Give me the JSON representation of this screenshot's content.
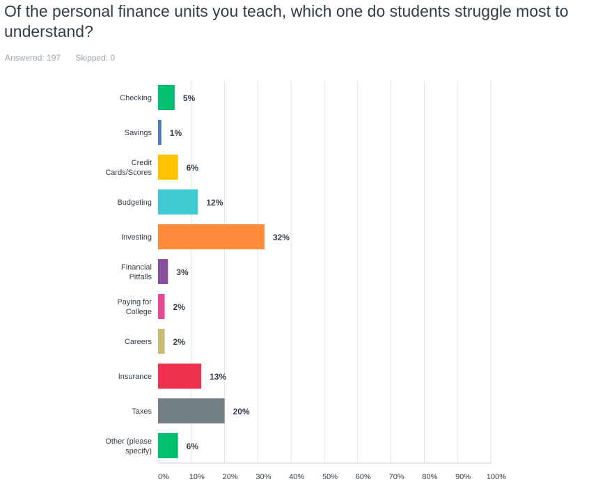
{
  "question": {
    "title": "Of the personal finance units you teach, which one do students struggle most to understand?"
  },
  "meta": {
    "answered": "Answered: 197",
    "skipped": "Skipped: 0"
  },
  "chart_data": {
    "type": "bar",
    "orientation": "horizontal",
    "categories": [
      [
        "Checking"
      ],
      [
        "Savings"
      ],
      [
        "Credit",
        "Cards/Scores"
      ],
      [
        "Budgeting"
      ],
      [
        "Investing"
      ],
      [
        "Financial",
        "Pitfalls"
      ],
      [
        "Paying for",
        "College"
      ],
      [
        "Careers"
      ],
      [
        "Insurance"
      ],
      [
        "Taxes"
      ],
      [
        "Other (please",
        "specify)"
      ]
    ],
    "values": [
      5,
      1,
      6,
      12,
      32,
      3,
      2,
      2,
      13,
      20,
      6
    ],
    "value_labels": [
      "5%",
      "1%",
      "6%",
      "12%",
      "32%",
      "3%",
      "2%",
      "2%",
      "13%",
      "20%",
      "6%"
    ],
    "colors": [
      "#00bf6f",
      "#507cb6",
      "#ffc300",
      "#3fcad1",
      "#ff8b3d",
      "#8a4f9c",
      "#e74c94",
      "#c9bc79",
      "#f0304f",
      "#737e84",
      "#00bf6f"
    ],
    "xlim": [
      0,
      100
    ],
    "xticks": [
      0,
      10,
      20,
      30,
      40,
      50,
      60,
      70,
      80,
      90,
      100
    ],
    "xtick_labels": [
      "0%",
      "10%",
      "20%",
      "30%",
      "40%",
      "50%",
      "60%",
      "70%",
      "80%",
      "90%",
      "100%"
    ],
    "grid": true
  }
}
